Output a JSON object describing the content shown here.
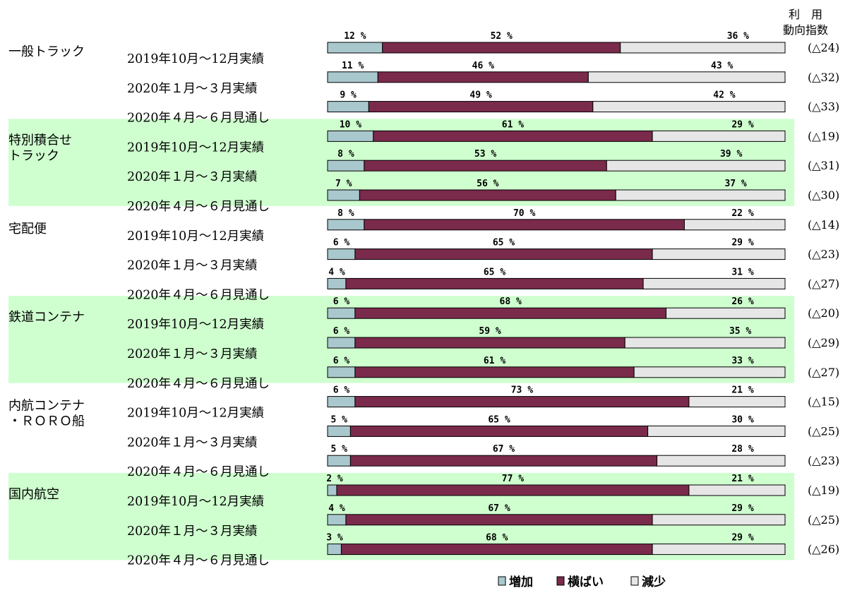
{
  "chart_data": {
    "type": "bar",
    "stacked": true,
    "orientation": "horizontal",
    "index_header": [
      "利　用",
      "動向指数"
    ],
    "series": [
      {
        "name": "増加",
        "color": "#a9c8ce"
      },
      {
        "name": "横ばい",
        "color": "#7a2a4b"
      },
      {
        "name": "減少",
        "color": "#e6e6e6"
      }
    ],
    "groups": [
      {
        "category": [
          "一般トラック"
        ],
        "shaded": false,
        "rows": [
          {
            "period": "2019年10月～12月実績",
            "values": [
              12,
              52,
              36
            ],
            "labels": [
              "12 %",
              "52 %",
              "36 %"
            ],
            "index": "(△24)"
          },
          {
            "period": "2020年１月～３月実績",
            "values": [
              11,
              46,
              43
            ],
            "labels": [
              "11 %",
              "46 %",
              "43 %"
            ],
            "index": "(△32)"
          },
          {
            "period": "2020年４月～６月見通し",
            "values": [
              9,
              49,
              42
            ],
            "labels": [
              "9 %",
              "49 %",
              "42 %"
            ],
            "index": "(△33)"
          }
        ]
      },
      {
        "category": [
          "特別積合せ",
          "トラック"
        ],
        "shaded": true,
        "rows": [
          {
            "period": "2019年10月～12月実績",
            "values": [
              10,
              61,
              29
            ],
            "labels": [
              "10 %",
              "61 %",
              "29 %"
            ],
            "index": "(△19)"
          },
          {
            "period": "2020年１月～３月実績",
            "values": [
              8,
              53,
              39
            ],
            "labels": [
              "8 %",
              "53 %",
              "39 %"
            ],
            "index": "(△31)"
          },
          {
            "period": "2020年４月～６月見通し",
            "values": [
              7,
              56,
              37
            ],
            "labels": [
              "7 %",
              "56 %",
              "37 %"
            ],
            "index": "(△30)"
          }
        ]
      },
      {
        "category": [
          "宅配便"
        ],
        "shaded": false,
        "rows": [
          {
            "period": "2019年10月～12月実績",
            "values": [
              8,
              70,
              22
            ],
            "labels": [
              "8 %",
              "70 %",
              "22 %"
            ],
            "index": "(△14)"
          },
          {
            "period": "2020年１月～３月実績",
            "values": [
              6,
              65,
              29
            ],
            "labels": [
              "6 %",
              "65 %",
              "29 %"
            ],
            "index": "(△23)"
          },
          {
            "period": "2020年４月～６月見通し",
            "values": [
              4,
              65,
              31
            ],
            "labels": [
              "4 %",
              "65 %",
              "31 %"
            ],
            "index": "(△27)"
          }
        ]
      },
      {
        "category": [
          "鉄道コンテナ"
        ],
        "shaded": true,
        "rows": [
          {
            "period": "2019年10月～12月実績",
            "values": [
              6,
              68,
              26
            ],
            "labels": [
              "6 %",
              "68 %",
              "26 %"
            ],
            "index": "(△20)"
          },
          {
            "period": "2020年１月～３月実績",
            "values": [
              6,
              59,
              35
            ],
            "labels": [
              "6 %",
              "59 %",
              "35 %"
            ],
            "index": "(△29)"
          },
          {
            "period": "2020年４月～６月見通し",
            "values": [
              6,
              61,
              33
            ],
            "labels": [
              "6 %",
              "61 %",
              "33 %"
            ],
            "index": "(△27)"
          }
        ]
      },
      {
        "category": [
          "内航コンテナ",
          "・ＲＯＲＯ船"
        ],
        "shaded": false,
        "rows": [
          {
            "period": "2019年10月～12月実績",
            "values": [
              6,
              73,
              21
            ],
            "labels": [
              "6 %",
              "73 %",
              "21 %"
            ],
            "index": "(△15)"
          },
          {
            "period": "2020年１月～３月実績",
            "values": [
              5,
              65,
              30
            ],
            "labels": [
              "5 %",
              "65 %",
              "30 %"
            ],
            "index": "(△25)"
          },
          {
            "period": "2020年４月～６月見通し",
            "values": [
              5,
              67,
              28
            ],
            "labels": [
              "5 %",
              "67 %",
              "28 %"
            ],
            "index": "(△23)"
          }
        ]
      },
      {
        "category": [
          "国内航空"
        ],
        "shaded": true,
        "rows": [
          {
            "period": "2019年10月～12月実績",
            "values": [
              2,
              77,
              21
            ],
            "labels": [
              "2 %",
              "77 %",
              "21 %"
            ],
            "index": "(△19)"
          },
          {
            "period": "2020年１月～３月実績",
            "values": [
              4,
              67,
              29
            ],
            "labels": [
              "4 %",
              "67 %",
              "29 %"
            ],
            "index": "(△25)"
          },
          {
            "period": "2020年４月～６月見通し",
            "values": [
              3,
              68,
              29
            ],
            "labels": [
              "3 %",
              "68 %",
              "29 %"
            ],
            "index": "(△26)"
          }
        ]
      }
    ],
    "xlim": [
      0,
      100
    ],
    "legend_position": "bottom"
  }
}
